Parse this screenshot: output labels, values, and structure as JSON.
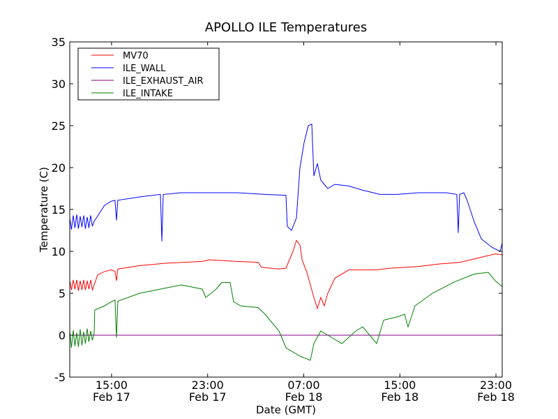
{
  "chart_data": {
    "type": "line",
    "title": "APOLLO ILE Temperatures",
    "xlabel": "Date (GMT)",
    "ylabel": "Temperature (C)",
    "x_units": "hours since Feb 17 00:00 GMT",
    "xlim": [
      11.52,
      47.52
    ],
    "ylim": [
      -5,
      35
    ],
    "yticks": [
      -5,
      0,
      5,
      10,
      15,
      20,
      25,
      30,
      35
    ],
    "ytick_labels": [
      "-5",
      "0",
      "5",
      "10",
      "15",
      "20",
      "25",
      "30",
      "35"
    ],
    "xticks": [
      {
        "x": 15,
        "time": "15:00",
        "date": "Feb 17"
      },
      {
        "x": 23,
        "time": "23:00",
        "date": "Feb 17"
      },
      {
        "x": 31,
        "time": "07:00",
        "date": "Feb 18"
      },
      {
        "x": 39,
        "time": "15:00",
        "date": "Feb 18"
      },
      {
        "x": 47,
        "time": "23:00",
        "date": "Feb 18"
      }
    ],
    "grid": false,
    "legend_position": "top-left",
    "series": [
      {
        "name": "MV70",
        "color": "#ff0000",
        "x": [
          11.52,
          11.66,
          11.81,
          11.95,
          12.1,
          12.24,
          12.39,
          12.53,
          12.68,
          12.82,
          12.97,
          13.11,
          13.26,
          13.4,
          13.55,
          13.84,
          14.42,
          15.0,
          15.29,
          15.41,
          15.52,
          17.33,
          19.65,
          22.55,
          23.13,
          25.46,
          27.2,
          27.49,
          28.94,
          29.52,
          30.1,
          30.39,
          30.68,
          30.86,
          31.26,
          31.84,
          32.13,
          32.42,
          32.71,
          33.0,
          33.59,
          34.75,
          37.07,
          38.23,
          40.55,
          42.29,
          44.03,
          45.78,
          46.94,
          47.52
        ],
        "y": [
          6.5,
          5.4,
          6.6,
          5.5,
          6.6,
          5.3,
          6.5,
          5.4,
          6.6,
          5.4,
          6.5,
          5.5,
          6.6,
          5.4,
          6.0,
          7.2,
          7.6,
          7.8,
          7.6,
          6.5,
          7.9,
          8.3,
          8.6,
          8.8,
          9.0,
          8.8,
          8.7,
          8.1,
          7.9,
          8.0,
          10.0,
          11.3,
          10.8,
          9.0,
          7.5,
          4.5,
          3.2,
          4.5,
          3.5,
          5.0,
          6.8,
          7.8,
          7.8,
          8.0,
          8.2,
          8.5,
          8.7,
          9.3,
          9.7,
          9.6
        ]
      },
      {
        "name": "ILE_WALL",
        "color": "#0000ff",
        "x": [
          11.52,
          11.66,
          11.81,
          11.95,
          12.1,
          12.24,
          12.39,
          12.53,
          12.68,
          12.82,
          12.97,
          13.11,
          13.26,
          13.4,
          13.55,
          14.42,
          15.0,
          15.29,
          15.41,
          15.52,
          17.33,
          19.07,
          19.19,
          19.3,
          20.81,
          23.13,
          25.46,
          27.78,
          29.52,
          29.63,
          29.98,
          30.39,
          30.68,
          31.03,
          31.38,
          31.67,
          31.84,
          32.13,
          32.42,
          33.0,
          33.59,
          34.75,
          35.91,
          37.36,
          38.81,
          40.55,
          42.87,
          43.74,
          43.86,
          43.97,
          44.33,
          44.62,
          45.2,
          45.78,
          46.65,
          47.35,
          47.52
        ],
        "y": [
          14.0,
          12.6,
          14.3,
          12.8,
          14.4,
          12.7,
          14.2,
          12.9,
          14.3,
          12.7,
          14.1,
          12.8,
          14.3,
          13.0,
          13.6,
          15.5,
          16.0,
          16.1,
          13.7,
          16.1,
          16.5,
          16.8,
          11.2,
          16.8,
          17.0,
          17.0,
          17.0,
          16.8,
          16.7,
          13.0,
          12.5,
          14.0,
          20.0,
          23.0,
          25.0,
          25.2,
          19.0,
          20.5,
          18.5,
          17.5,
          18.0,
          17.8,
          17.3,
          16.8,
          16.8,
          17.0,
          17.0,
          16.8,
          12.2,
          16.8,
          17.0,
          16.0,
          13.5,
          11.5,
          10.5,
          10.0,
          11.0
        ]
      },
      {
        "name": "ILE_EXHAUST_AIR",
        "color": "#800080",
        "x": [
          11.52,
          47.52
        ],
        "y": [
          0,
          0
        ]
      },
      {
        "name": "ILE_INTAKE",
        "color": "#008000",
        "x": [
          11.52,
          11.66,
          11.81,
          11.95,
          12.1,
          12.24,
          12.39,
          12.53,
          12.68,
          12.82,
          12.97,
          13.11,
          13.26,
          13.4,
          13.55,
          13.6,
          14.42,
          15.0,
          15.29,
          15.41,
          15.52,
          15.58,
          17.33,
          19.07,
          20.81,
          22.55,
          22.84,
          23.71,
          24.18,
          24.87,
          25.16,
          25.75,
          27.2,
          27.78,
          28.94,
          29.52,
          30.68,
          31.55,
          31.84,
          32.42,
          33.0,
          34.17,
          35.33,
          35.91,
          37.07,
          37.65,
          38.81,
          39.39,
          39.68,
          40.26,
          41.71,
          43.45,
          45.2,
          46.36,
          46.94,
          47.52
        ],
        "y": [
          0.5,
          -1.5,
          0.6,
          -1.3,
          0.3,
          -1.4,
          0.7,
          -1.2,
          0.4,
          -1.0,
          0.8,
          -0.8,
          0.5,
          -0.6,
          0.2,
          3.0,
          3.5,
          4.0,
          4.2,
          -0.3,
          4.0,
          4.1,
          5.0,
          5.5,
          6.0,
          5.5,
          4.5,
          5.5,
          6.3,
          6.3,
          4.0,
          3.5,
          3.3,
          2.5,
          0.5,
          -1.5,
          -2.5,
          -3.0,
          -1.0,
          0.5,
          0.0,
          -1.0,
          0.5,
          1.0,
          -1.0,
          1.8,
          2.2,
          2.5,
          1.0,
          3.5,
          5.0,
          6.3,
          7.3,
          7.5,
          6.5,
          5.8
        ]
      }
    ]
  }
}
